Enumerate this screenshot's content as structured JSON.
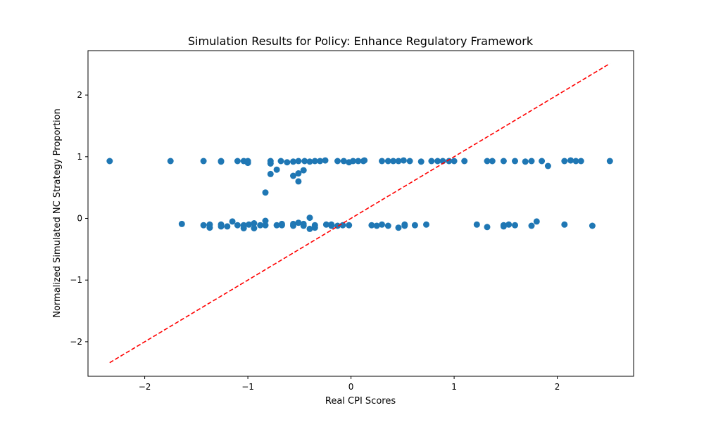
{
  "chart_data": {
    "type": "scatter",
    "title": "Simulation Results for Policy: Enhance Regulatory Framework",
    "xlabel": "Real CPI Scores",
    "ylabel": "Normalized Simulated NC Strategy Proportion",
    "xlim": [
      -2.55,
      2.74
    ],
    "ylim": [
      -2.56,
      2.72
    ],
    "xticks": [
      -2,
      -1,
      0,
      1,
      2
    ],
    "yticks": [
      -2,
      -1,
      0,
      1,
      2
    ],
    "xtick_labels": [
      "−2",
      "−1",
      "0",
      "1",
      "2"
    ],
    "ytick_labels": [
      "−2",
      "−1",
      "0",
      "1",
      "2"
    ],
    "grid": false,
    "point_color": "#1f77b4",
    "reference_line": {
      "x": [
        -2.34,
        2.51
      ],
      "y": [
        -2.34,
        2.51
      ],
      "color": "#ff0000",
      "style": "dashed"
    },
    "points": [
      [
        -2.34,
        0.93
      ],
      [
        -1.75,
        0.93
      ],
      [
        -1.43,
        0.93
      ],
      [
        -1.26,
        0.92
      ],
      [
        -1.26,
        0.93
      ],
      [
        -1.1,
        0.93
      ],
      [
        -1.04,
        0.93
      ],
      [
        -1.0,
        0.9
      ],
      [
        -1.0,
        0.93
      ],
      [
        -0.78,
        0.93
      ],
      [
        -0.78,
        0.89
      ],
      [
        -0.68,
        0.93
      ],
      [
        -0.62,
        0.91
      ],
      [
        -0.56,
        0.92
      ],
      [
        -0.51,
        0.93
      ],
      [
        -0.45,
        0.93
      ],
      [
        -0.4,
        0.92
      ],
      [
        -0.35,
        0.93
      ],
      [
        -0.3,
        0.93
      ],
      [
        -0.25,
        0.94
      ],
      [
        -0.13,
        0.93
      ],
      [
        -0.07,
        0.93
      ],
      [
        -0.02,
        0.91
      ],
      [
        0.02,
        0.93
      ],
      [
        0.07,
        0.93
      ],
      [
        0.12,
        0.93
      ],
      [
        0.13,
        0.94
      ],
      [
        0.3,
        0.93
      ],
      [
        0.36,
        0.93
      ],
      [
        0.41,
        0.93
      ],
      [
        0.46,
        0.93
      ],
      [
        0.51,
        0.94
      ],
      [
        0.57,
        0.93
      ],
      [
        0.68,
        0.92
      ],
      [
        0.78,
        0.93
      ],
      [
        0.84,
        0.93
      ],
      [
        0.89,
        0.93
      ],
      [
        0.95,
        0.93
      ],
      [
        1.0,
        0.93
      ],
      [
        1.1,
        0.93
      ],
      [
        1.32,
        0.93
      ],
      [
        1.37,
        0.93
      ],
      [
        1.48,
        0.93
      ],
      [
        1.59,
        0.93
      ],
      [
        1.69,
        0.92
      ],
      [
        1.75,
        0.93
      ],
      [
        1.85,
        0.93
      ],
      [
        1.91,
        0.85
      ],
      [
        2.07,
        0.93
      ],
      [
        2.13,
        0.94
      ],
      [
        2.18,
        0.93
      ],
      [
        2.23,
        0.93
      ],
      [
        2.51,
        0.93
      ],
      [
        -0.78,
        0.72
      ],
      [
        -0.72,
        0.79
      ],
      [
        -0.83,
        0.42
      ],
      [
        -0.56,
        0.69
      ],
      [
        -0.51,
        0.73
      ],
      [
        -0.46,
        0.78
      ],
      [
        -0.51,
        0.6
      ],
      [
        -1.64,
        -0.09
      ],
      [
        -1.43,
        -0.11
      ],
      [
        -1.37,
        -0.1
      ],
      [
        -1.37,
        -0.15
      ],
      [
        -1.26,
        -0.1
      ],
      [
        -1.26,
        -0.13
      ],
      [
        -1.2,
        -0.13
      ],
      [
        -1.15,
        -0.05
      ],
      [
        -1.1,
        -0.11
      ],
      [
        -1.04,
        -0.11
      ],
      [
        -1.04,
        -0.16
      ],
      [
        -0.99,
        -0.1
      ],
      [
        -0.94,
        -0.08
      ],
      [
        -0.94,
        -0.16
      ],
      [
        -0.88,
        -0.11
      ],
      [
        -0.83,
        -0.11
      ],
      [
        -0.83,
        -0.04
      ],
      [
        -0.72,
        -0.11
      ],
      [
        -0.67,
        -0.11
      ],
      [
        -0.67,
        -0.09
      ],
      [
        -0.56,
        -0.12
      ],
      [
        -0.56,
        -0.09
      ],
      [
        -0.51,
        -0.07
      ],
      [
        -0.46,
        -0.09
      ],
      [
        -0.46,
        -0.12
      ],
      [
        -0.4,
        0.01
      ],
      [
        -0.4,
        -0.17
      ],
      [
        -0.35,
        -0.11
      ],
      [
        -0.35,
        -0.15
      ],
      [
        -0.24,
        -0.1
      ],
      [
        -0.19,
        -0.12
      ],
      [
        -0.19,
        -0.1
      ],
      [
        -0.13,
        -0.12
      ],
      [
        -0.08,
        -0.11
      ],
      [
        -0.02,
        -0.11
      ],
      [
        0.2,
        -0.11
      ],
      [
        0.25,
        -0.12
      ],
      [
        0.3,
        -0.1
      ],
      [
        0.36,
        -0.12
      ],
      [
        0.46,
        -0.15
      ],
      [
        0.52,
        -0.1
      ],
      [
        0.52,
        -0.12
      ],
      [
        0.62,
        -0.11
      ],
      [
        0.73,
        -0.1
      ],
      [
        1.22,
        -0.1
      ],
      [
        1.32,
        -0.14
      ],
      [
        1.48,
        -0.11
      ],
      [
        1.48,
        -0.13
      ],
      [
        1.53,
        -0.1
      ],
      [
        1.59,
        -0.11
      ],
      [
        1.75,
        -0.12
      ],
      [
        1.8,
        -0.05
      ],
      [
        2.07,
        -0.1
      ],
      [
        2.34,
        -0.12
      ]
    ]
  }
}
